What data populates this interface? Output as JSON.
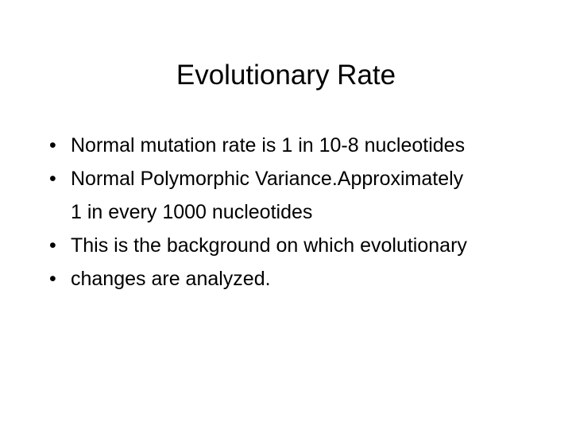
{
  "slide": {
    "title": "Evolutionary Rate",
    "bullets": [
      "Normal mutation rate is 1 in 10-8 nucleotides",
      "Normal Polymorphic Variance.Approximately 1 in every 1000 nucleotides",
      "This is the background on which evolutionary",
      "changes are analyzed."
    ]
  }
}
